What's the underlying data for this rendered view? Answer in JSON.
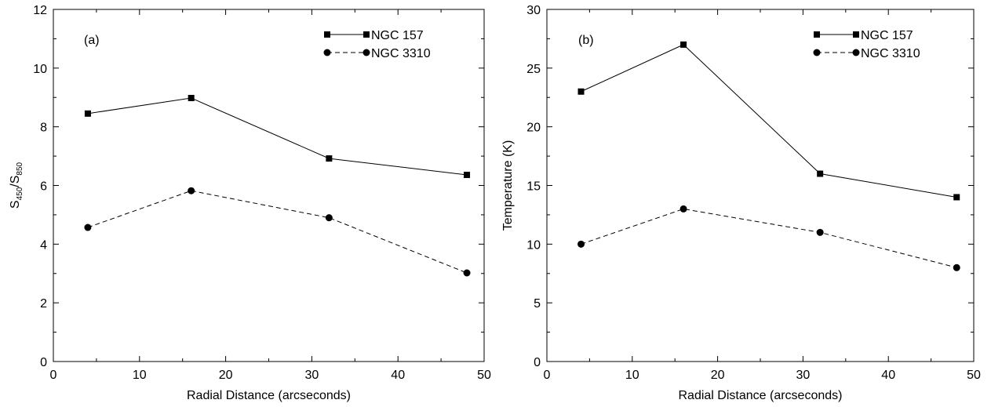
{
  "chart_data": [
    {
      "type": "line",
      "panel_label": "(a)",
      "xlabel": "Radial Distance (arcseconds)",
      "ylabel": {
        "base": "S",
        "sub1": "450",
        "sep": "/S",
        "sub2": "850"
      },
      "xlim": [
        0,
        50
      ],
      "ylim": [
        0,
        12
      ],
      "xticks": [
        "0",
        "10",
        "20",
        "30",
        "40",
        "50"
      ],
      "yticks": [
        "0",
        "2",
        "4",
        "6",
        "8",
        "10",
        "12"
      ],
      "legend_position": "top-right",
      "x": [
        4,
        16,
        32,
        48
      ],
      "series": [
        {
          "name": "NGC 157",
          "values": [
            8.45,
            8.98,
            6.92,
            6.36
          ],
          "marker": "square",
          "line": "solid"
        },
        {
          "name": "NGC 3310",
          "values": [
            4.57,
            5.82,
            4.9,
            3.02
          ],
          "marker": "circle",
          "line": "dashed"
        }
      ]
    },
    {
      "type": "line",
      "panel_label": "(b)",
      "xlabel": "Radial Distance (arcseconds)",
      "ylabel": {
        "base": "Temperature (K)"
      },
      "xlim": [
        0,
        50
      ],
      "ylim": [
        0,
        30
      ],
      "xticks": [
        "0",
        "10",
        "20",
        "30",
        "40",
        "50"
      ],
      "yticks": [
        "0",
        "5",
        "10",
        "15",
        "20",
        "25",
        "30"
      ],
      "legend_position": "top-right",
      "x": [
        4,
        16,
        32,
        48
      ],
      "series": [
        {
          "name": "NGC 157",
          "values": [
            23,
            27,
            16,
            14
          ],
          "marker": "square",
          "line": "solid"
        },
        {
          "name": "NGC 3310",
          "values": [
            10,
            13,
            11,
            8
          ],
          "marker": "circle",
          "line": "dashed"
        }
      ]
    }
  ]
}
